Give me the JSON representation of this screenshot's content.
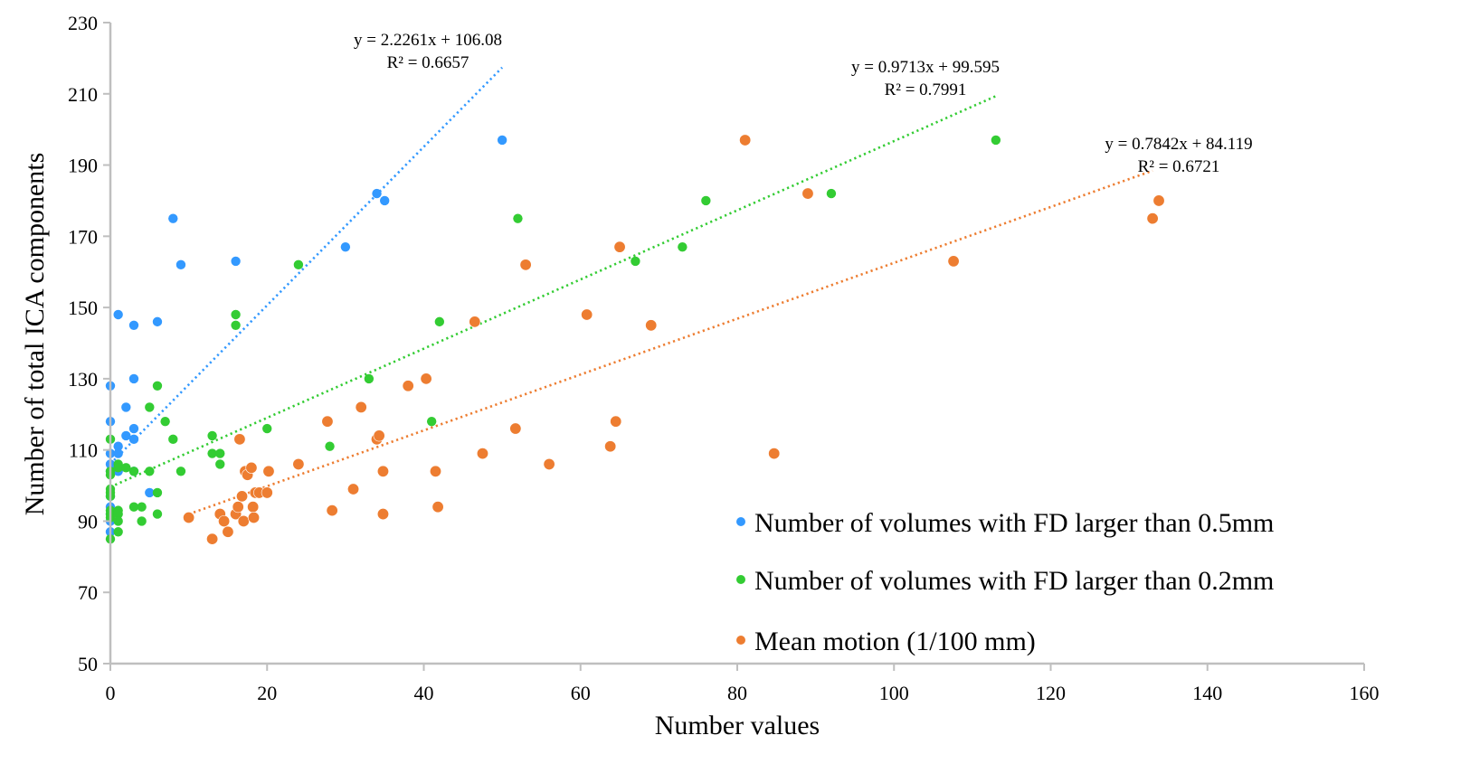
{
  "chart_data": {
    "type": "scatter",
    "title": "",
    "xlabel": "Number values",
    "ylabel": "Number of total ICA components",
    "xlim": [
      0,
      160
    ],
    "ylim": [
      50,
      230
    ],
    "x_ticks": [
      "0",
      "20",
      "40",
      "60",
      "80",
      "100",
      "120",
      "140",
      "160"
    ],
    "y_ticks": [
      "50",
      "70",
      "90",
      "110",
      "130",
      "150",
      "170",
      "190",
      "210",
      "230"
    ],
    "grid": false,
    "legend_position": "bottom-right",
    "series": [
      {
        "name": "Number of volumes with FD larger than 0.5mm",
        "color": "#3399ff",
        "trendline": {
          "slope": 2.2261,
          "intercept": 106.08,
          "x_range": [
            0,
            50
          ],
          "equation": "y = 2.2261x + 106.08",
          "r2": "R² = 0.6657"
        },
        "points": [
          [
            0,
            128
          ],
          [
            0,
            118
          ],
          [
            0,
            109
          ],
          [
            0,
            106
          ],
          [
            0,
            104
          ],
          [
            0,
            97
          ],
          [
            0,
            94
          ],
          [
            0,
            92
          ],
          [
            0,
            90
          ],
          [
            0,
            87
          ],
          [
            1,
            148
          ],
          [
            1,
            111
          ],
          [
            1,
            109
          ],
          [
            1,
            105
          ],
          [
            1,
            104
          ],
          [
            2,
            122
          ],
          [
            2,
            114
          ],
          [
            3,
            145
          ],
          [
            3,
            130
          ],
          [
            3,
            116
          ],
          [
            3,
            113
          ],
          [
            3,
            104
          ],
          [
            5,
            98
          ],
          [
            6,
            146
          ],
          [
            8,
            175
          ],
          [
            9,
            162
          ],
          [
            16,
            163
          ],
          [
            30,
            167
          ],
          [
            34,
            182
          ],
          [
            35,
            180
          ],
          [
            50,
            197
          ]
        ]
      },
      {
        "name": "Number of volumes with FD larger than 0.2mm",
        "color": "#33cc33",
        "trendline": {
          "slope": 0.9713,
          "intercept": 99.595,
          "x_range": [
            0,
            113
          ],
          "equation": "y = 0.9713x + 99.595",
          "r2": "R² = 0.7991"
        },
        "points": [
          [
            0,
            113
          ],
          [
            0,
            104
          ],
          [
            0,
            103
          ],
          [
            0,
            99
          ],
          [
            0,
            98
          ],
          [
            0,
            97
          ],
          [
            0,
            93
          ],
          [
            0,
            92
          ],
          [
            0,
            91
          ],
          [
            0,
            85
          ],
          [
            1,
            106
          ],
          [
            1,
            105
          ],
          [
            1,
            93
          ],
          [
            1,
            92
          ],
          [
            1,
            90
          ],
          [
            1,
            87
          ],
          [
            2,
            105
          ],
          [
            3,
            104
          ],
          [
            3,
            94
          ],
          [
            4,
            94
          ],
          [
            4,
            90
          ],
          [
            5,
            122
          ],
          [
            5,
            104
          ],
          [
            6,
            128
          ],
          [
            6,
            98
          ],
          [
            6,
            92
          ],
          [
            7,
            118
          ],
          [
            8,
            113
          ],
          [
            9,
            104
          ],
          [
            13,
            114
          ],
          [
            13,
            109
          ],
          [
            14,
            109
          ],
          [
            14,
            106
          ],
          [
            16,
            148
          ],
          [
            16,
            145
          ],
          [
            20,
            116
          ],
          [
            24,
            162
          ],
          [
            28,
            111
          ],
          [
            33,
            130
          ],
          [
            41,
            118
          ],
          [
            42,
            146
          ],
          [
            52,
            175
          ],
          [
            67,
            163
          ],
          [
            73,
            167
          ],
          [
            76,
            180
          ],
          [
            92,
            182
          ],
          [
            113,
            197
          ]
        ]
      },
      {
        "name": "Mean motion (1/100 mm)",
        "color": "#ed7d31",
        "trendline": {
          "slope": 0.7842,
          "intercept": 84.119,
          "x_range": [
            10,
            133
          ],
          "equation": "y = 0.7842x + 84.119",
          "r2": "R² = 0.6721"
        },
        "points": [
          [
            10,
            91
          ],
          [
            13,
            85
          ],
          [
            14,
            92
          ],
          [
            14.5,
            90
          ],
          [
            15,
            87
          ],
          [
            16,
            92
          ],
          [
            16.3,
            94
          ],
          [
            16.5,
            113
          ],
          [
            16.8,
            97
          ],
          [
            17,
            90
          ],
          [
            17.2,
            104
          ],
          [
            17.5,
            103
          ],
          [
            18,
            105
          ],
          [
            18.2,
            94
          ],
          [
            18.3,
            91
          ],
          [
            18.5,
            98
          ],
          [
            19,
            98
          ],
          [
            20,
            98
          ],
          [
            20.2,
            104
          ],
          [
            24,
            106
          ],
          [
            27.7,
            118
          ],
          [
            28.3,
            93
          ],
          [
            31,
            99
          ],
          [
            32,
            122
          ],
          [
            34,
            113
          ],
          [
            34.3,
            114
          ],
          [
            34.8,
            104
          ],
          [
            34.8,
            92
          ],
          [
            38,
            128
          ],
          [
            40.3,
            130
          ],
          [
            41.5,
            104
          ],
          [
            41.8,
            94
          ],
          [
            46.5,
            146
          ],
          [
            47.5,
            109
          ],
          [
            51.7,
            116
          ],
          [
            53,
            162
          ],
          [
            56,
            106
          ],
          [
            60.8,
            148
          ],
          [
            63.8,
            111
          ],
          [
            64.5,
            118
          ],
          [
            65,
            167
          ],
          [
            69,
            145
          ],
          [
            81,
            197
          ],
          [
            84.7,
            109
          ],
          [
            89,
            182
          ],
          [
            107.6,
            163
          ],
          [
            133,
            175
          ],
          [
            133.8,
            180
          ]
        ]
      }
    ]
  }
}
